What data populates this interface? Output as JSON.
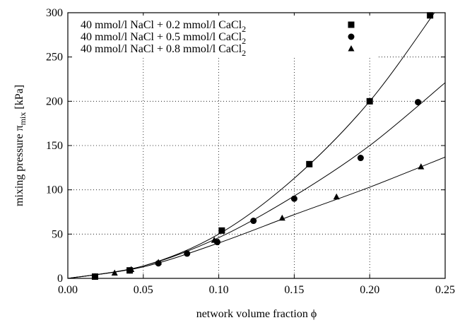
{
  "chart_data": {
    "type": "scatter",
    "xlabel": "network volume fraction ϕ",
    "ylabel": {
      "prefix": "mixing pressure π",
      "subscript": "mix",
      "suffix": " [kPa]"
    },
    "xlim": [
      0,
      0.25
    ],
    "ylim": [
      0,
      300
    ],
    "x_ticks": [
      "0.00",
      "0.05",
      "0.10",
      "0.15",
      "0.20",
      "0.25"
    ],
    "y_ticks": [
      "0",
      "50",
      "100",
      "150",
      "200",
      "250",
      "300"
    ],
    "grid": "dotted",
    "legend_position": "top-left",
    "series": [
      {
        "name": "40 mmol/l NaCl + 0.2 mmol/l CaCl",
        "name_subscript": "2",
        "marker": "square",
        "points": [
          [
            0.018,
            2
          ],
          [
            0.041,
            9
          ],
          [
            0.102,
            54
          ],
          [
            0.16,
            129
          ],
          [
            0.2,
            200
          ],
          [
            0.24,
            297
          ]
        ],
        "fit": [
          [
            0.0,
            0
          ],
          [
            0.05,
            14
          ],
          [
            0.1,
            50
          ],
          [
            0.15,
            113
          ],
          [
            0.2,
            200
          ],
          [
            0.245,
            305
          ]
        ]
      },
      {
        "name": "40 mmol/l NaCl + 0.5 mmol/l CaCl",
        "name_subscript": "2",
        "marker": "circle",
        "points": [
          [
            0.018,
            2
          ],
          [
            0.041,
            9
          ],
          [
            0.06,
            17
          ],
          [
            0.079,
            28
          ],
          [
            0.099,
            41
          ],
          [
            0.123,
            65
          ],
          [
            0.15,
            90
          ],
          [
            0.194,
            136
          ],
          [
            0.232,
            199
          ]
        ],
        "fit": [
          [
            0.0,
            0
          ],
          [
            0.05,
            14
          ],
          [
            0.1,
            46
          ],
          [
            0.15,
            93
          ],
          [
            0.2,
            150
          ],
          [
            0.25,
            221
          ]
        ]
      },
      {
        "name": "40 mmol/l NaCl + 0.8 mmol/l CaCl",
        "name_subscript": "2",
        "marker": "triangle",
        "points": [
          [
            0.018,
            2
          ],
          [
            0.031,
            6
          ],
          [
            0.042,
            10
          ],
          [
            0.06,
            18
          ],
          [
            0.097,
            43
          ],
          [
            0.142,
            68
          ],
          [
            0.178,
            92
          ],
          [
            0.234,
            126
          ]
        ],
        "fit": [
          [
            0.0,
            0
          ],
          [
            0.05,
            13
          ],
          [
            0.1,
            40
          ],
          [
            0.15,
            72
          ],
          [
            0.2,
            103
          ],
          [
            0.25,
            137
          ]
        ]
      }
    ]
  }
}
